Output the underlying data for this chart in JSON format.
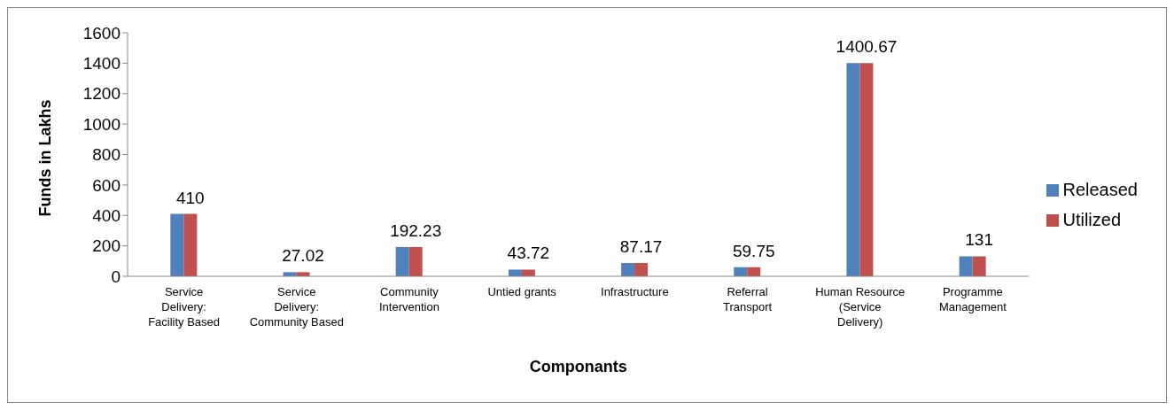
{
  "chart_data": {
    "type": "bar",
    "xlabel": "Componants",
    "ylabel": "Funds in Lakhs",
    "categories": [
      "Service Delivery: Facility Based",
      "Service Delivery: Community Based",
      "Community Intervention",
      "Untied grants",
      "Infrastructure",
      "Referral Transport",
      "Human Resource (Service Delivery)",
      "Programme Management"
    ],
    "series": [
      {
        "name": "Released",
        "color": "#4f81bd",
        "values": [
          410,
          27.02,
          192.23,
          43.72,
          87.17,
          59.75,
          1400.67,
          131
        ]
      },
      {
        "name": "Utilized",
        "color": "#c0504d",
        "values": [
          410,
          27.02,
          192.23,
          43.72,
          87.17,
          59.75,
          1400.67,
          131
        ],
        "value_labels": [
          "410",
          "27.02",
          "192.23",
          "43.72",
          "87.17",
          "59.75",
          "1400.67",
          "131"
        ]
      }
    ],
    "ylim": [
      0,
      1600
    ],
    "yticks": [
      0,
      200,
      400,
      600,
      800,
      1000,
      1200,
      1400,
      1600
    ],
    "grid": false,
    "legend": "right"
  }
}
